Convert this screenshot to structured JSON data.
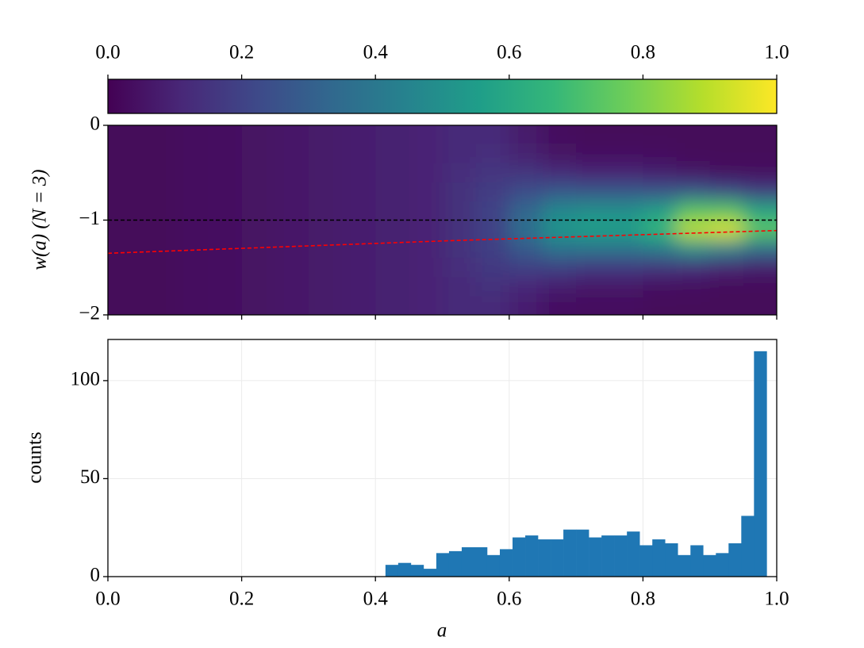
{
  "chart_data": [
    {
      "type": "colorbar",
      "colors": [
        "#440154",
        "#482878",
        "#3e4989",
        "#31688e",
        "#26828e",
        "#1f9e89",
        "#35b779",
        "#6ece58",
        "#b5de2b",
        "#fde725"
      ],
      "xlim": [
        0,
        1
      ],
      "xticks": [
        {
          "value": 0,
          "label": "0.0"
        },
        0.2,
        0.4,
        0.6,
        0.8,
        {
          "value": 1,
          "label": "1.0"
        }
      ]
    },
    {
      "type": "heatmap",
      "ylabel": "w(a) (N = 3)",
      "xlim": [
        0,
        1
      ],
      "ylim": [
        -2,
        0
      ],
      "yticks": [
        {
          "value": -2,
          "label": "−2"
        },
        {
          "value": -1,
          "label": "−1"
        },
        0
      ],
      "x": [
        0.025,
        0.075,
        0.125,
        0.175,
        0.225,
        0.275,
        0.325,
        0.375,
        0.425,
        0.475,
        0.525,
        0.575,
        0.625,
        0.675,
        0.725,
        0.775,
        0.825,
        0.875,
        0.925,
        0.975
      ],
      "y": [
        -0.1,
        -0.3,
        -0.5,
        -0.7,
        -0.9,
        -1.1,
        -1.3,
        -1.5,
        -1.7,
        -1.9
      ],
      "z": [
        [
          0.02,
          0.02,
          0.03,
          0.04,
          0.05,
          0.06,
          0.07,
          0.08,
          0.09,
          0.1,
          0.12,
          0.12,
          0.07,
          0.03,
          0.02,
          0.02,
          0.02,
          0.02,
          0.02,
          0.02
        ],
        [
          0.02,
          0.02,
          0.03,
          0.04,
          0.05,
          0.06,
          0.07,
          0.08,
          0.09,
          0.1,
          0.12,
          0.13,
          0.09,
          0.05,
          0.04,
          0.04,
          0.03,
          0.02,
          0.02,
          0.02
        ],
        [
          0.02,
          0.02,
          0.03,
          0.04,
          0.05,
          0.06,
          0.07,
          0.08,
          0.09,
          0.1,
          0.13,
          0.155,
          0.15,
          0.12,
          0.1,
          0.1,
          0.08,
          0.06,
          0.04,
          0.04
        ],
        [
          0.02,
          0.02,
          0.03,
          0.04,
          0.05,
          0.06,
          0.07,
          0.08,
          0.09,
          0.1,
          0.14,
          0.18,
          0.24,
          0.28,
          0.27,
          0.27,
          0.26,
          0.27,
          0.23,
          0.18
        ],
        [
          0.02,
          0.02,
          0.03,
          0.04,
          0.05,
          0.06,
          0.07,
          0.08,
          0.09,
          0.1,
          0.14,
          0.2,
          0.33,
          0.47,
          0.5,
          0.5,
          0.56,
          0.73,
          0.73,
          0.58
        ],
        [
          0.02,
          0.02,
          0.03,
          0.04,
          0.05,
          0.06,
          0.07,
          0.08,
          0.09,
          0.1,
          0.14,
          0.2,
          0.36,
          0.52,
          0.56,
          0.56,
          0.66,
          0.9,
          0.94,
          0.74
        ],
        [
          0.02,
          0.02,
          0.03,
          0.04,
          0.05,
          0.06,
          0.07,
          0.08,
          0.09,
          0.1,
          0.14,
          0.19,
          0.29,
          0.38,
          0.39,
          0.39,
          0.42,
          0.5,
          0.45,
          0.36
        ],
        [
          0.02,
          0.02,
          0.03,
          0.04,
          0.05,
          0.06,
          0.07,
          0.08,
          0.09,
          0.1,
          0.13,
          0.17,
          0.19,
          0.19,
          0.17,
          0.17,
          0.15,
          0.13,
          0.1,
          0.08
        ],
        [
          0.02,
          0.02,
          0.03,
          0.04,
          0.05,
          0.06,
          0.07,
          0.08,
          0.09,
          0.1,
          0.12,
          0.14,
          0.11,
          0.08,
          0.06,
          0.06,
          0.04,
          0.03,
          0.02,
          0.02
        ],
        [
          0.02,
          0.02,
          0.03,
          0.04,
          0.05,
          0.06,
          0.07,
          0.08,
          0.09,
          0.1,
          0.12,
          0.12,
          0.08,
          0.04,
          0.03,
          0.03,
          0.02,
          0.02,
          0.02,
          0.02
        ]
      ],
      "lines": [
        {
          "color": "#000000",
          "x": [
            0,
            1
          ],
          "y": [
            -1,
            -1
          ]
        },
        {
          "color": "#ff0000",
          "x": [
            0,
            0.5,
            1
          ],
          "y": [
            -1.35,
            -1.22,
            -1.11
          ]
        }
      ]
    },
    {
      "type": "histogram",
      "xlabel": "a",
      "ylabel": "counts",
      "color": "#1f77b4",
      "grid": true,
      "xlim": [
        0,
        1
      ],
      "ylim": [
        0,
        121
      ],
      "xticks": [
        {
          "value": 0,
          "label": "0.0"
        },
        0.2,
        0.4,
        0.6,
        0.8,
        {
          "value": 1,
          "label": "1.0"
        }
      ],
      "yticks": [
        0,
        50,
        100
      ],
      "bins": [
        0.415,
        0.434,
        0.453,
        0.472,
        0.491,
        0.51,
        0.529,
        0.548,
        0.567,
        0.586,
        0.605,
        0.624,
        0.643,
        0.662,
        0.681,
        0.7,
        0.719,
        0.738,
        0.757,
        0.776,
        0.795,
        0.814,
        0.833,
        0.852,
        0.871,
        0.89,
        0.909,
        0.928,
        0.947,
        0.966,
        0.985
      ],
      "values": [
        6,
        7,
        6,
        4,
        12,
        13,
        15,
        15,
        11,
        14,
        20,
        21,
        19,
        19,
        24,
        24,
        20,
        21,
        21,
        23,
        16,
        19,
        17,
        11,
        16,
        11,
        12,
        17,
        31,
        115
      ]
    }
  ]
}
